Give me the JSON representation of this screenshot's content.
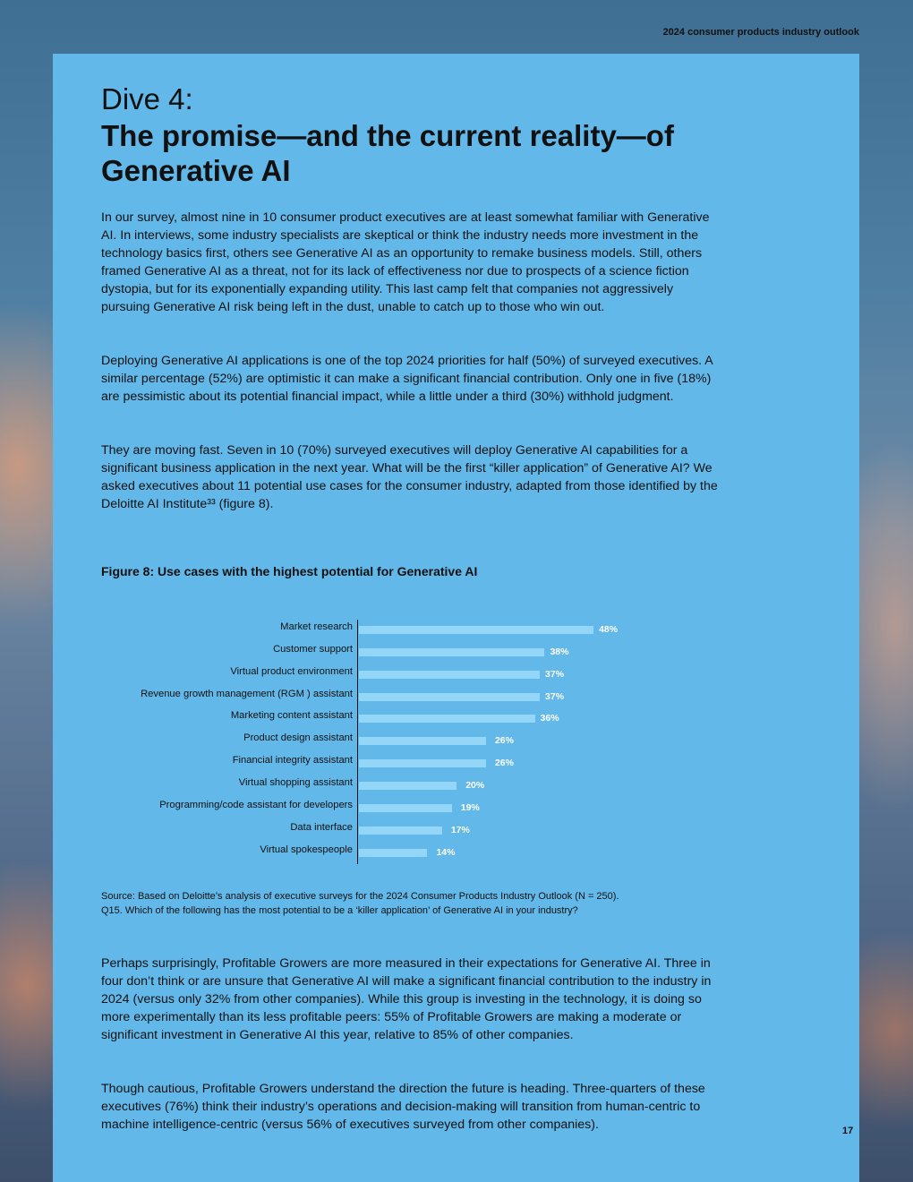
{
  "header": {
    "publication": "2024 consumer products industry outlook"
  },
  "title": {
    "kicker": "Dive 4:",
    "main": "The promise—and the current reality—of Generative AI"
  },
  "paragraphs": [
    "In our survey, almost nine in 10 consumer product executives are at least somewhat familiar with Generative AI. In interviews, some industry specialists are skeptical or think the industry needs more investment in the technology basics first, others see Generative AI as an opportunity to remake business models. Still, others framed Generative AI as a threat, not for its lack of effectiveness nor due to prospects of a science fiction dystopia, but for its exponentially expanding utility. This last camp felt that companies not aggressively pursuing Generative AI risk being left in the dust, unable to catch up to those who win out.",
    "Deploying Generative AI applications is one of the top 2024 priorities for half (50%) of surveyed executives. A similar percentage (52%) are optimistic it can make a significant financial contribution. Only one in five (18%) are pessimistic about its potential financial impact, while a little under a third (30%) withhold judgment.",
    "They are moving fast. Seven in 10 (70%) surveyed executives will deploy Generative AI capabilities for a significant business application in the next year. What will be the first “killer application” of Generative AI? We asked executives about 11 potential use cases for the consumer industry, adapted from those identified by the Deloitte AI Institute³³ (figure 8)."
  ],
  "figure": {
    "title": "Figure 8: Use cases with the highest potential for Generative AI",
    "source_line1": "Source: Based on Deloitte’s analysis of executive surveys for the 2024 Consumer Products Industry Outlook (N = 250).",
    "source_line2": "Q15. Which of the following has the most potential to be a ‘killer application’ of Generative AI in your industry?"
  },
  "chart_data": {
    "type": "bar",
    "orientation": "horizontal",
    "xlim": [
      0,
      100
    ],
    "grid": false,
    "bar_color": "#93d6f7",
    "categories": [
      "Market research",
      "Customer support",
      "Virtual product environment",
      "Revenue growth management (RGM ) assistant",
      "Marketing content assistant",
      "Product design assistant",
      "Financial integrity assistant",
      "Virtual shopping assistant",
      "Programming/code assistant for developers",
      "Data interface",
      "Virtual spokespeople"
    ],
    "values": [
      48,
      38,
      37,
      37,
      36,
      26,
      26,
      20,
      19,
      17,
      14
    ],
    "labels": [
      "48%",
      "38%",
      "37%",
      "37%",
      "36%",
      "26%",
      "26%",
      "20%",
      "19%",
      "17%",
      "14%"
    ]
  },
  "paragraphs_after": [
    "Perhaps surprisingly, Profitable Growers are more measured in their expectations for Generative AI. Three in four don’t think or are unsure that Generative AI will make a significant financial contribution to the industry in 2024 (versus only 32% from other companies). While this group is investing in the technology, it is doing so more experimentally than its less profitable peers: 55% of Profitable Growers are making a moderate or significant investment in Generative AI this year, relative to 85% of other companies.",
    "Though cautious, Profitable Growers understand the direction the future is heading. Three-quarters of these executives (76%) think their industry’s operations and decision-making will transition from human-centric to machine intelligence-centric (versus 56% of executives surveyed from other companies)."
  ],
  "page_number": "17",
  "colors": {
    "panel": "#62b8e9",
    "bar": "#93d6f7"
  }
}
